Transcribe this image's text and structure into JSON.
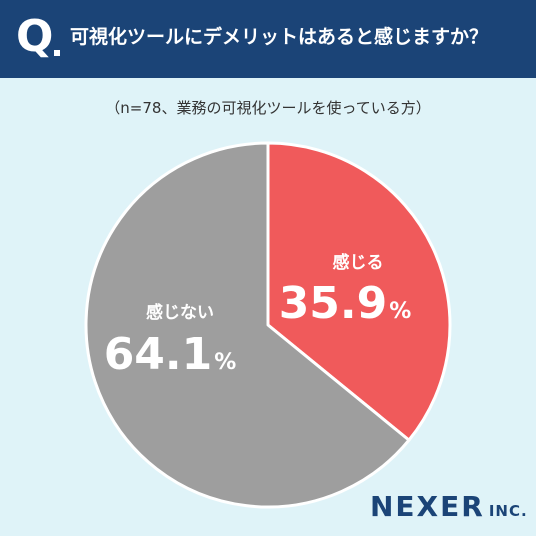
{
  "header": {
    "q_mark": "Q",
    "question": "可視化ツールにデメリットはあると感じますか？"
  },
  "subtitle": "（n=78、業務の可視化ツールを使っている方）",
  "colors": {
    "header_bg": "#1b4477",
    "background": "#dff3f8",
    "slice_feel": "#f05a5b",
    "slice_not_feel": "#9e9e9e"
  },
  "chart_data": {
    "type": "pie",
    "title": "可視化ツールにデメリットはあると感じますか？",
    "labels": [
      "感じる",
      "感じない"
    ],
    "values": [
      35.9,
      64.1
    ],
    "value_labels": [
      "35.9",
      "64.1"
    ],
    "unit": "%",
    "colors": [
      "#f05a5b",
      "#9e9e9e"
    ],
    "start": "12 o'clock",
    "direction": "clockwise"
  },
  "logo": {
    "main": "NEXER",
    "suffix": "INC."
  }
}
